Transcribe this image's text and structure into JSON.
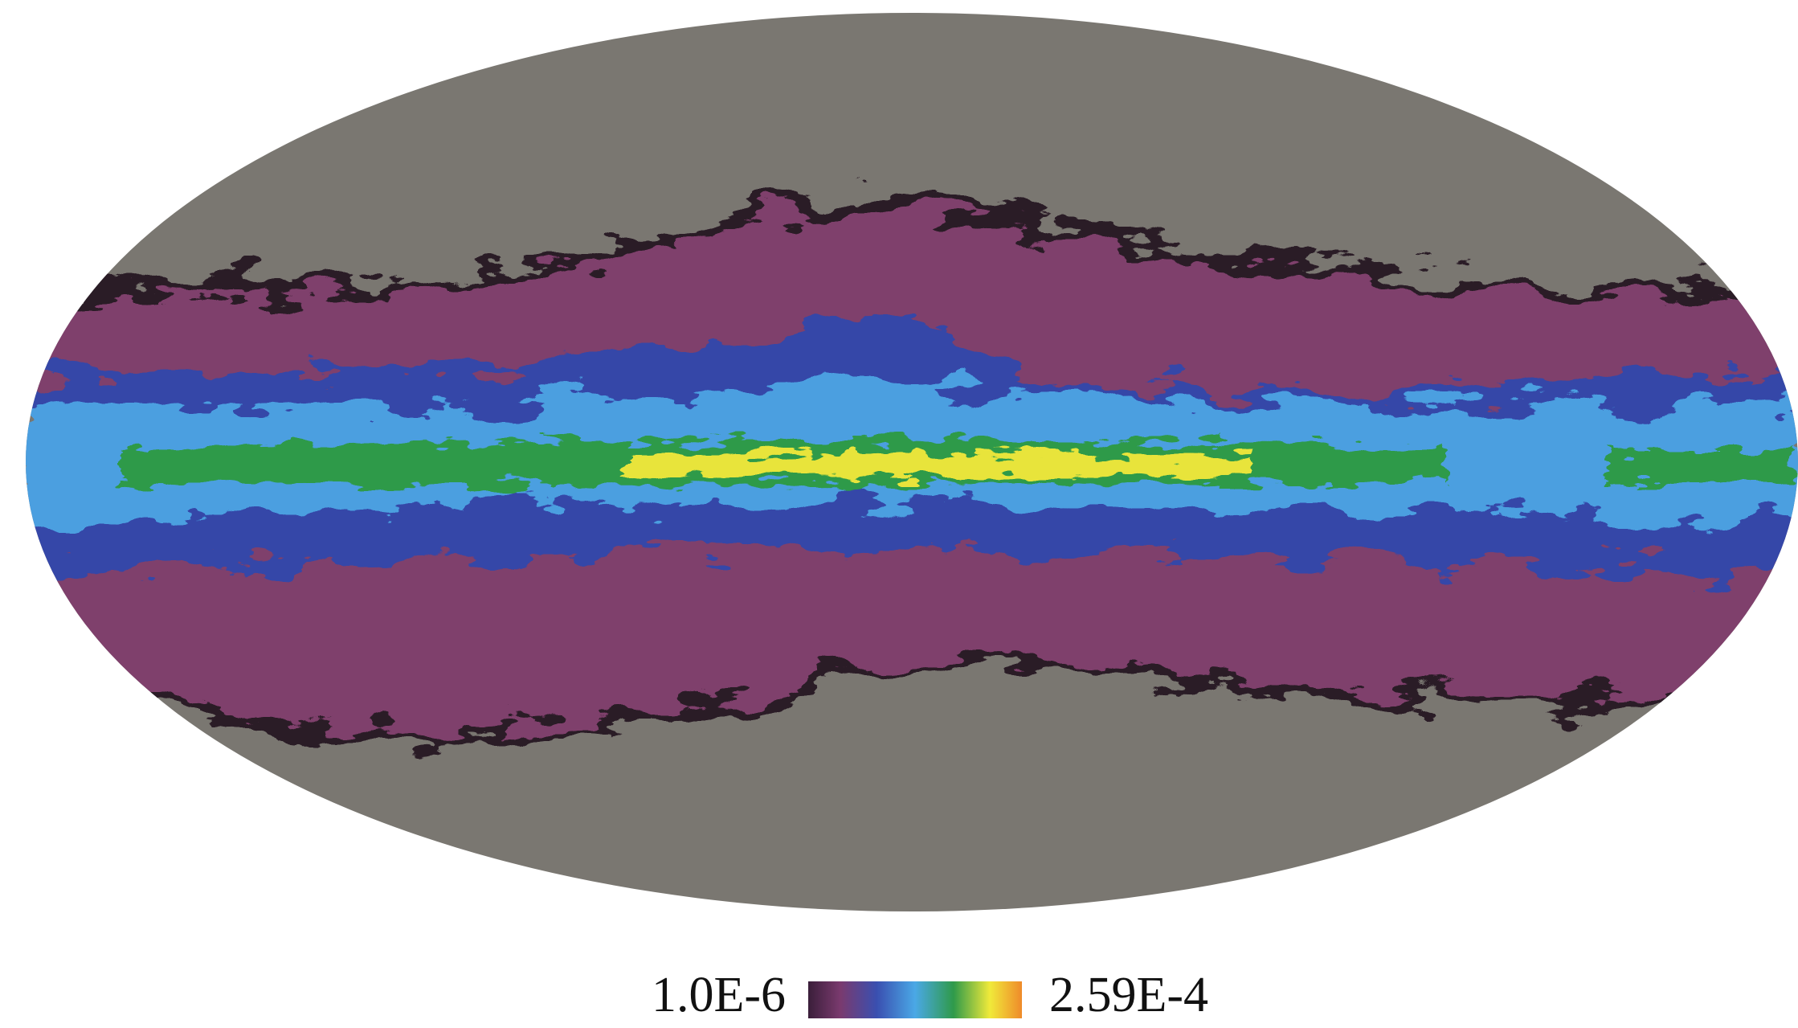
{
  "colorbar": {
    "min_label": "1.0E-6",
    "max_label": "2.59E-4"
  }
}
